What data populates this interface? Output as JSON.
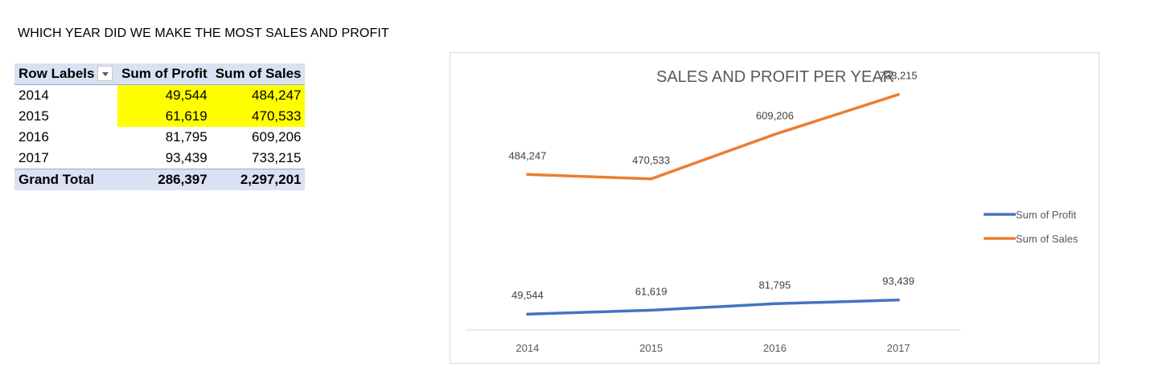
{
  "question": "WHICH YEAR DID WE MAKE THE MOST SALES AND PROFIT",
  "pivot": {
    "headers": {
      "row_labels": "Row Labels",
      "profit": "Sum of Profit",
      "sales": "Sum of Sales"
    },
    "rows": [
      {
        "label": "2014",
        "profit": "49,544",
        "sales": "484,247",
        "highlight": true
      },
      {
        "label": "2015",
        "profit": "61,619",
        "sales": "470,533",
        "highlight": true
      },
      {
        "label": "2016",
        "profit": "81,795",
        "sales": "609,206",
        "highlight": false
      },
      {
        "label": "2017",
        "profit": "93,439",
        "sales": "733,215",
        "highlight": false
      }
    ],
    "total": {
      "label": "Grand Total",
      "profit": "286,397",
      "sales": "2,297,201"
    },
    "highlight_color": "#ffff00",
    "header_color": "#d9e1f2"
  },
  "chart_data": {
    "type": "line",
    "title": "SALES AND PROFIT PER YEAR",
    "categories": [
      "2014",
      "2015",
      "2016",
      "2017"
    ],
    "series": [
      {
        "name": "Sum of Profit",
        "values": [
          49544,
          61619,
          81795,
          93439
        ],
        "labels": [
          "49,544",
          "61,619",
          "81,795",
          "93,439"
        ],
        "color": "#4472c4"
      },
      {
        "name": "Sum of Sales",
        "values": [
          484247,
          470533,
          609206,
          733215
        ],
        "labels": [
          "484,247",
          "470,533",
          "609,206",
          "733,215"
        ],
        "color": "#ed7d31"
      }
    ],
    "ylim": [
      0,
      800000
    ],
    "legend": "right",
    "grid": false,
    "xlabel": "",
    "ylabel": ""
  }
}
